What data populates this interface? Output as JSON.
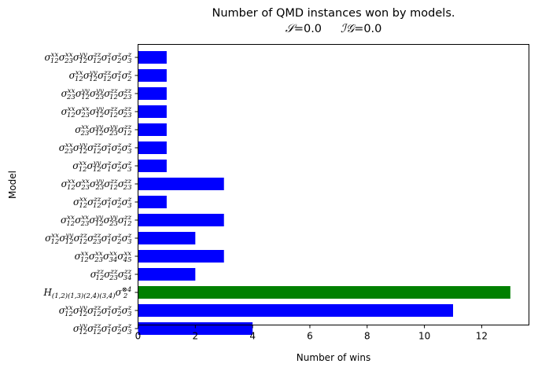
{
  "chart_data": {
    "type": "bar",
    "orientation": "horizontal",
    "title": "Number of QMD instances won by models.",
    "subtitle_parts": [
      {
        "symbol": "𝒮",
        "value": "=0.0"
      },
      {
        "symbol": "ℐ𝒢",
        "value": "=0.0"
      }
    ],
    "xlabel": "Number of wins",
    "ylabel": "Model",
    "xlim": [
      0,
      13.65
    ],
    "xticks": [
      "0",
      "2",
      "4",
      "6",
      "8",
      "10",
      "12"
    ],
    "xtick_values": [
      0,
      2,
      4,
      6,
      8,
      10,
      12
    ],
    "grid": false,
    "colors": {
      "default": "#0000ff",
      "highlight": "#008000"
    },
    "bars": [
      {
        "value": 1,
        "color": "#0000ff",
        "label": [
          [
            "σ",
            "12",
            "xx"
          ],
          [
            "σ",
            "23",
            "xx"
          ],
          [
            "σ",
            "12",
            "yy"
          ],
          [
            "σ",
            "12",
            "zz"
          ],
          [
            "σ",
            "1",
            "z"
          ],
          [
            "σ",
            "2",
            "z"
          ],
          [
            "σ",
            "3",
            "z"
          ]
        ]
      },
      {
        "value": 1,
        "color": "#0000ff",
        "label": [
          [
            "σ",
            "12",
            "xx"
          ],
          [
            "σ",
            "12",
            "yy"
          ],
          [
            "σ",
            "12",
            "zz"
          ],
          [
            "σ",
            "1",
            "z"
          ],
          [
            "σ",
            "2",
            "z"
          ]
        ]
      },
      {
        "value": 1,
        "color": "#0000ff",
        "label": [
          [
            "σ",
            "23",
            "xx"
          ],
          [
            "σ",
            "12",
            "yy"
          ],
          [
            "σ",
            "23",
            "yy"
          ],
          [
            "σ",
            "12",
            "zz"
          ],
          [
            "σ",
            "23",
            "zz"
          ]
        ]
      },
      {
        "value": 1,
        "color": "#0000ff",
        "label": [
          [
            "σ",
            "12",
            "xx"
          ],
          [
            "σ",
            "23",
            "xx"
          ],
          [
            "σ",
            "12",
            "yy"
          ],
          [
            "σ",
            "12",
            "zz"
          ],
          [
            "σ",
            "23",
            "zz"
          ]
        ]
      },
      {
        "value": 1,
        "color": "#0000ff",
        "label": [
          [
            "σ",
            "23",
            "xx"
          ],
          [
            "σ",
            "12",
            "yy"
          ],
          [
            "σ",
            "23",
            "yy"
          ],
          [
            "σ",
            "12",
            "zz"
          ]
        ]
      },
      {
        "value": 1,
        "color": "#0000ff",
        "label": [
          [
            "σ",
            "23",
            "xx"
          ],
          [
            "σ",
            "12",
            "yy"
          ],
          [
            "σ",
            "12",
            "zz"
          ],
          [
            "σ",
            "1",
            "z"
          ],
          [
            "σ",
            "2",
            "z"
          ],
          [
            "σ",
            "3",
            "z"
          ]
        ]
      },
      {
        "value": 1,
        "color": "#0000ff",
        "label": [
          [
            "σ",
            "12",
            "xx"
          ],
          [
            "σ",
            "12",
            "yy"
          ],
          [
            "σ",
            "1",
            "z"
          ],
          [
            "σ",
            "2",
            "z"
          ],
          [
            "σ",
            "3",
            "z"
          ]
        ]
      },
      {
        "value": 3,
        "color": "#0000ff",
        "label": [
          [
            "σ",
            "12",
            "xx"
          ],
          [
            "σ",
            "23",
            "xx"
          ],
          [
            "σ",
            "23",
            "yy"
          ],
          [
            "σ",
            "12",
            "zz"
          ],
          [
            "σ",
            "23",
            "zz"
          ]
        ]
      },
      {
        "value": 1,
        "color": "#0000ff",
        "label": [
          [
            "σ",
            "12",
            "xx"
          ],
          [
            "σ",
            "12",
            "zz"
          ],
          [
            "σ",
            "1",
            "z"
          ],
          [
            "σ",
            "2",
            "z"
          ],
          [
            "σ",
            "3",
            "z"
          ]
        ]
      },
      {
        "value": 3,
        "color": "#0000ff",
        "label": [
          [
            "σ",
            "12",
            "xx"
          ],
          [
            "σ",
            "23",
            "xx"
          ],
          [
            "σ",
            "12",
            "yy"
          ],
          [
            "σ",
            "23",
            "yy"
          ],
          [
            "σ",
            "12",
            "zz"
          ]
        ]
      },
      {
        "value": 2,
        "color": "#0000ff",
        "label": [
          [
            "σ",
            "12",
            "xx"
          ],
          [
            "σ",
            "12",
            "yy"
          ],
          [
            "σ",
            "12",
            "zz"
          ],
          [
            "σ",
            "23",
            "zz"
          ],
          [
            "σ",
            "1",
            "z"
          ],
          [
            "σ",
            "2",
            "z"
          ],
          [
            "σ",
            "3",
            "z"
          ]
        ]
      },
      {
        "value": 3,
        "color": "#0000ff",
        "label": [
          [
            "σ",
            "12",
            "xx"
          ],
          [
            "σ",
            "23",
            "xx"
          ],
          [
            "σ",
            "34",
            "xx"
          ],
          [
            "σ",
            "45",
            "xx"
          ]
        ]
      },
      {
        "value": 2,
        "color": "#0000ff",
        "label": [
          [
            "σ",
            "12",
            "zz"
          ],
          [
            "σ",
            "23",
            "zz"
          ],
          [
            "σ",
            "34",
            "zz"
          ]
        ]
      },
      {
        "value": 13,
        "color": "#008000",
        "label": [
          [
            "H",
            "(1,2)(1,3)(2,4)(3,4)",
            ""
          ],
          [
            "σ",
            "2",
            "⊗4"
          ]
        ]
      },
      {
        "value": 11,
        "color": "#0000ff",
        "label": [
          [
            "σ",
            "12",
            "xx"
          ],
          [
            "σ",
            "12",
            "yy"
          ],
          [
            "σ",
            "12",
            "zz"
          ],
          [
            "σ",
            "1",
            "z"
          ],
          [
            "σ",
            "2",
            "z"
          ],
          [
            "σ",
            "3",
            "z"
          ]
        ]
      },
      {
        "value": 4,
        "color": "#0000ff",
        "label": [
          [
            "σ",
            "12",
            "yy"
          ],
          [
            "σ",
            "12",
            "zz"
          ],
          [
            "σ",
            "1",
            "z"
          ],
          [
            "σ",
            "2",
            "z"
          ],
          [
            "σ",
            "3",
            "z"
          ]
        ]
      }
    ]
  }
}
